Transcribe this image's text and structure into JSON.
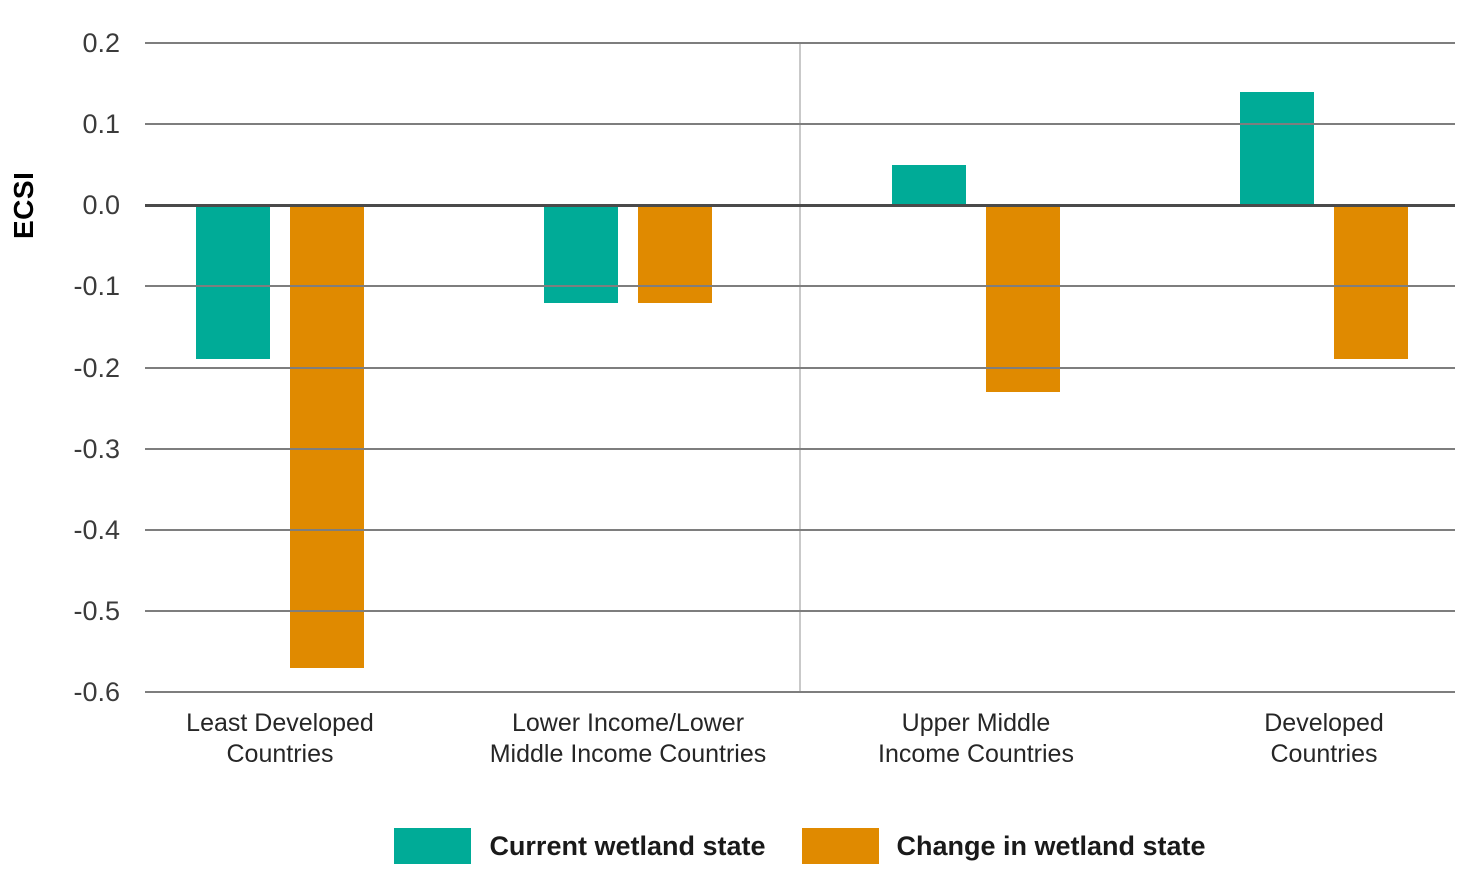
{
  "chart_data": {
    "type": "bar",
    "title": "",
    "xlabel": "",
    "ylabel": "ECSI",
    "ylim": [
      -0.6,
      0.2
    ],
    "ytick_step": 0.1,
    "yticks": [
      "0.2",
      "0.1",
      "0.0",
      "-0.1",
      "-0.2",
      "-0.3",
      "-0.4",
      "-0.5",
      "-0.6"
    ],
    "ytick_values": [
      0.2,
      0.1,
      0.0,
      -0.1,
      -0.2,
      -0.3,
      -0.4,
      -0.5,
      -0.6
    ],
    "categories": [
      "Least Developed Countries",
      "Lower Income/Lower Middle Income Countries",
      "Upper Middle Income Countries",
      "Developed Countries"
    ],
    "category_lines": [
      [
        "Least Developed",
        "Countries"
      ],
      [
        "Lower Income/Lower",
        "Middle Income Countries"
      ],
      [
        "Upper Middle",
        "Income Countries"
      ],
      [
        "Developed",
        "Countries"
      ]
    ],
    "series": [
      {
        "name": "Current wetland state",
        "color": "#00AB97",
        "values": [
          -0.19,
          -0.12,
          0.05,
          0.14
        ]
      },
      {
        "name": "Change in wetland state",
        "color": "#E08A00",
        "values": [
          -0.57,
          -0.12,
          -0.23,
          -0.19
        ]
      }
    ],
    "grid": "horizontal",
    "legend_position": "bottom",
    "colors": {
      "gridline": "#7e7e7e",
      "zero_line": "#4a4a4a",
      "center_divider": "#c9c9c9",
      "tick_text": "#3b3b3b",
      "category_text": "#262626",
      "background": "#ffffff"
    }
  }
}
